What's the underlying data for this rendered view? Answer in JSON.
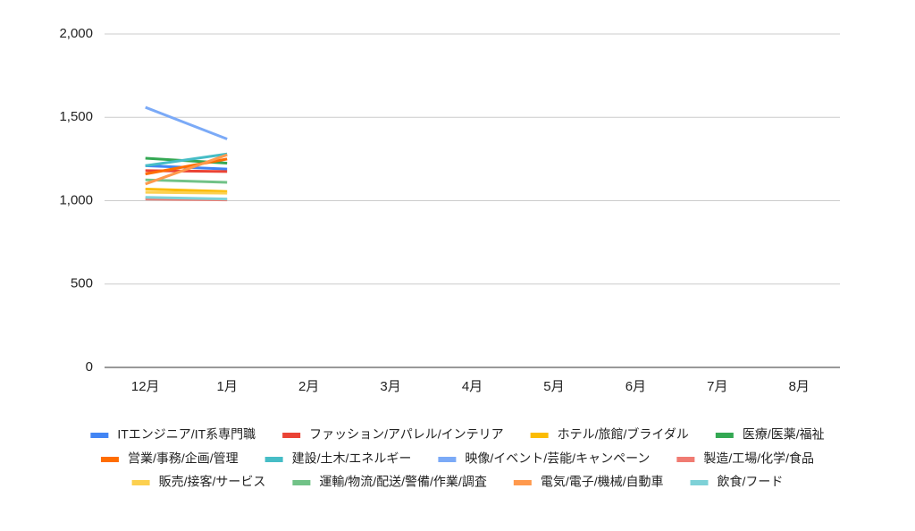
{
  "chart_data": {
    "type": "line",
    "categories": [
      "12月",
      "1月",
      "2月",
      "3月",
      "4月",
      "5月",
      "6月",
      "7月",
      "8月"
    ],
    "series": [
      {
        "name": "ITエンジニア/IT系専門職",
        "color": "#4285f4",
        "values": [
          1210,
          1190,
          null,
          null,
          null,
          null,
          null,
          null,
          null
        ]
      },
      {
        "name": "ファッション/アパレル/インテリア",
        "color": "#ea4335",
        "values": [
          1180,
          1175,
          null,
          null,
          null,
          null,
          null,
          null,
          null
        ]
      },
      {
        "name": "ホテル/旅館/ブライダル",
        "color": "#fbbc04",
        "values": [
          1070,
          1055,
          null,
          null,
          null,
          null,
          null,
          null,
          null
        ]
      },
      {
        "name": "医療/医薬/福祉",
        "color": "#34a853",
        "values": [
          1255,
          1225,
          null,
          null,
          null,
          null,
          null,
          null,
          null
        ]
      },
      {
        "name": "営業/事務/企画/管理",
        "color": "#ff6d01",
        "values": [
          1160,
          1250,
          null,
          null,
          null,
          null,
          null,
          null,
          null
        ]
      },
      {
        "name": "建設/土木/エネルギー",
        "color": "#46bdc6",
        "values": [
          1210,
          1280,
          null,
          null,
          null,
          null,
          null,
          null,
          null
        ]
      },
      {
        "name": "映像/イベント/芸能/キャンペーン",
        "color": "#7baaf7",
        "values": [
          1560,
          1370,
          null,
          null,
          null,
          null,
          null,
          null,
          null
        ]
      },
      {
        "name": "製造/工場/化学/食品",
        "color": "#f07b72",
        "values": [
          1010,
          1005,
          null,
          null,
          null,
          null,
          null,
          null,
          null
        ]
      },
      {
        "name": "販売/接客/サービス",
        "color": "#fcd04f",
        "values": [
          1050,
          1045,
          null,
          null,
          null,
          null,
          null,
          null,
          null
        ]
      },
      {
        "name": "運輸/物流/配送/警備/作業/調査",
        "color": "#71c287",
        "values": [
          1125,
          1110,
          null,
          null,
          null,
          null,
          null,
          null,
          null
        ]
      },
      {
        "name": "電気/電子/機械/自動車",
        "color": "#ff994d",
        "values": [
          1100,
          1275,
          null,
          null,
          null,
          null,
          null,
          null,
          null
        ]
      },
      {
        "name": "飲食/フード",
        "color": "#7ed1d7",
        "values": [
          1020,
          1010,
          null,
          null,
          null,
          null,
          null,
          null,
          null
        ]
      }
    ],
    "ylim": [
      0,
      2000
    ],
    "yticks": [
      0,
      500,
      {
        "value": 1000,
        "label": "1,000"
      },
      {
        "value": 1500,
        "label": "1,500"
      },
      {
        "value": 2000,
        "label": "2,000"
      }
    ],
    "grid": true,
    "legend": "bottom"
  }
}
